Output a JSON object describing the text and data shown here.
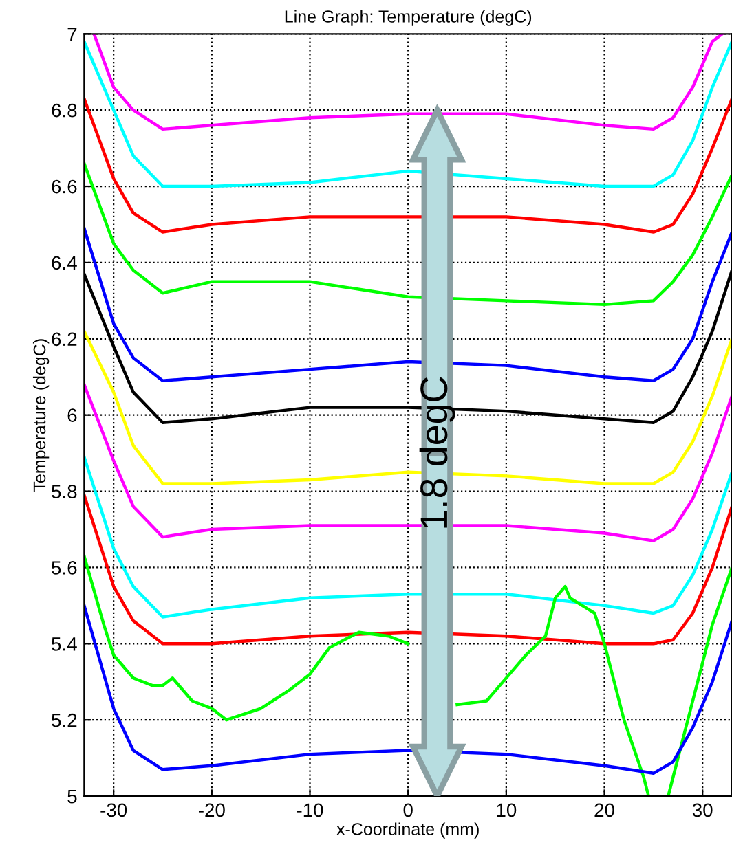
{
  "chart_data": {
    "type": "line",
    "title": "Line Graph: Temperature (degC)",
    "xlabel": "x-Coordinate (mm)",
    "ylabel": "Temperature (degC)",
    "x": [
      -33,
      -30,
      -28,
      -25,
      -20,
      -10,
      0,
      10,
      20,
      25,
      27,
      29,
      31,
      33
    ],
    "xlim": [
      -33,
      33
    ],
    "ylim": [
      5,
      7
    ],
    "xticks": [
      -30,
      -20,
      -10,
      0,
      10,
      20,
      30
    ],
    "yticks": [
      5,
      5.2,
      5.4,
      5.6,
      5.8,
      6,
      6.2,
      6.4,
      6.6,
      6.8,
      7
    ],
    "grid": true,
    "line_style": "solid",
    "marker": "none",
    "annotations": [
      "1.8 degC"
    ],
    "series": [
      {
        "color": "#ff00ff",
        "x": [
          -32,
          -30,
          -28,
          -25,
          -20,
          -10,
          0,
          10,
          20,
          25,
          27,
          29,
          31,
          32
        ],
        "values": [
          7.0,
          6.86,
          6.8,
          6.75,
          6.76,
          6.78,
          6.79,
          6.79,
          6.76,
          6.75,
          6.78,
          6.86,
          6.98,
          7.0
        ]
      },
      {
        "color": "#00ffff",
        "values": [
          6.98,
          6.8,
          6.68,
          6.6,
          6.6,
          6.61,
          6.64,
          6.62,
          6.6,
          6.6,
          6.63,
          6.72,
          6.86,
          6.98
        ]
      },
      {
        "color": "#ff0000",
        "values": [
          6.83,
          6.62,
          6.53,
          6.48,
          6.5,
          6.52,
          6.52,
          6.52,
          6.5,
          6.48,
          6.5,
          6.58,
          6.7,
          6.83
        ]
      },
      {
        "color": "#00ff00",
        "values": [
          6.66,
          6.45,
          6.38,
          6.32,
          6.35,
          6.35,
          6.31,
          6.3,
          6.29,
          6.3,
          6.35,
          6.42,
          6.52,
          6.63
        ]
      },
      {
        "color": "#0000ff",
        "values": [
          6.49,
          6.24,
          6.15,
          6.09,
          6.1,
          6.12,
          6.14,
          6.13,
          6.1,
          6.09,
          6.12,
          6.2,
          6.35,
          6.48
        ]
      },
      {
        "color": "#000000",
        "values": [
          6.37,
          6.18,
          6.06,
          5.98,
          5.99,
          6.02,
          6.02,
          6.01,
          5.99,
          5.98,
          6.01,
          6.1,
          6.22,
          6.38
        ]
      },
      {
        "color": "#ffff00",
        "values": [
          6.22,
          6.06,
          5.92,
          5.82,
          5.82,
          5.83,
          5.85,
          5.84,
          5.82,
          5.82,
          5.85,
          5.93,
          6.05,
          6.2
        ]
      },
      {
        "color": "#ff00ff",
        "values": [
          6.08,
          5.88,
          5.76,
          5.68,
          5.7,
          5.71,
          5.71,
          5.71,
          5.69,
          5.67,
          5.7,
          5.78,
          5.9,
          6.05
        ]
      },
      {
        "color": "#00ffff",
        "values": [
          5.89,
          5.65,
          5.55,
          5.47,
          5.49,
          5.52,
          5.53,
          5.53,
          5.5,
          5.48,
          5.5,
          5.58,
          5.7,
          5.85
        ]
      },
      {
        "color": "#ff0000",
        "values": [
          5.79,
          5.55,
          5.46,
          5.4,
          5.4,
          5.42,
          5.43,
          5.42,
          5.4,
          5.4,
          5.41,
          5.48,
          5.6,
          5.76
        ]
      },
      {
        "color": "#00ff00",
        "x": [
          -33,
          -31,
          -30,
          -28,
          -26,
          -25,
          -24,
          -22,
          -20,
          -18.5,
          -15,
          -12,
          -10,
          -8,
          -5,
          -2,
          0,
          2,
          5,
          8,
          9,
          12,
          14,
          15,
          16,
          16.5,
          19,
          20,
          22,
          24,
          24.5,
          25.5,
          26.5,
          27,
          29,
          31,
          33
        ],
        "values": [
          5.63,
          5.45,
          5.37,
          5.31,
          5.29,
          5.29,
          5.31,
          5.25,
          5.23,
          5.2,
          5.23,
          5.28,
          5.32,
          5.39,
          5.43,
          5.42,
          5.4,
          null,
          5.24,
          5.25,
          5.28,
          5.37,
          5.42,
          5.52,
          5.55,
          5.52,
          5.48,
          5.4,
          5.2,
          5.05,
          5.0,
          null,
          5.0,
          5.05,
          5.25,
          5.45,
          5.6
        ]
      },
      {
        "color": "#0000ff",
        "values": [
          5.5,
          5.23,
          5.12,
          5.07,
          5.08,
          5.11,
          5.12,
          5.11,
          5.08,
          5.06,
          5.09,
          5.18,
          5.3,
          5.46
        ]
      }
    ]
  }
}
